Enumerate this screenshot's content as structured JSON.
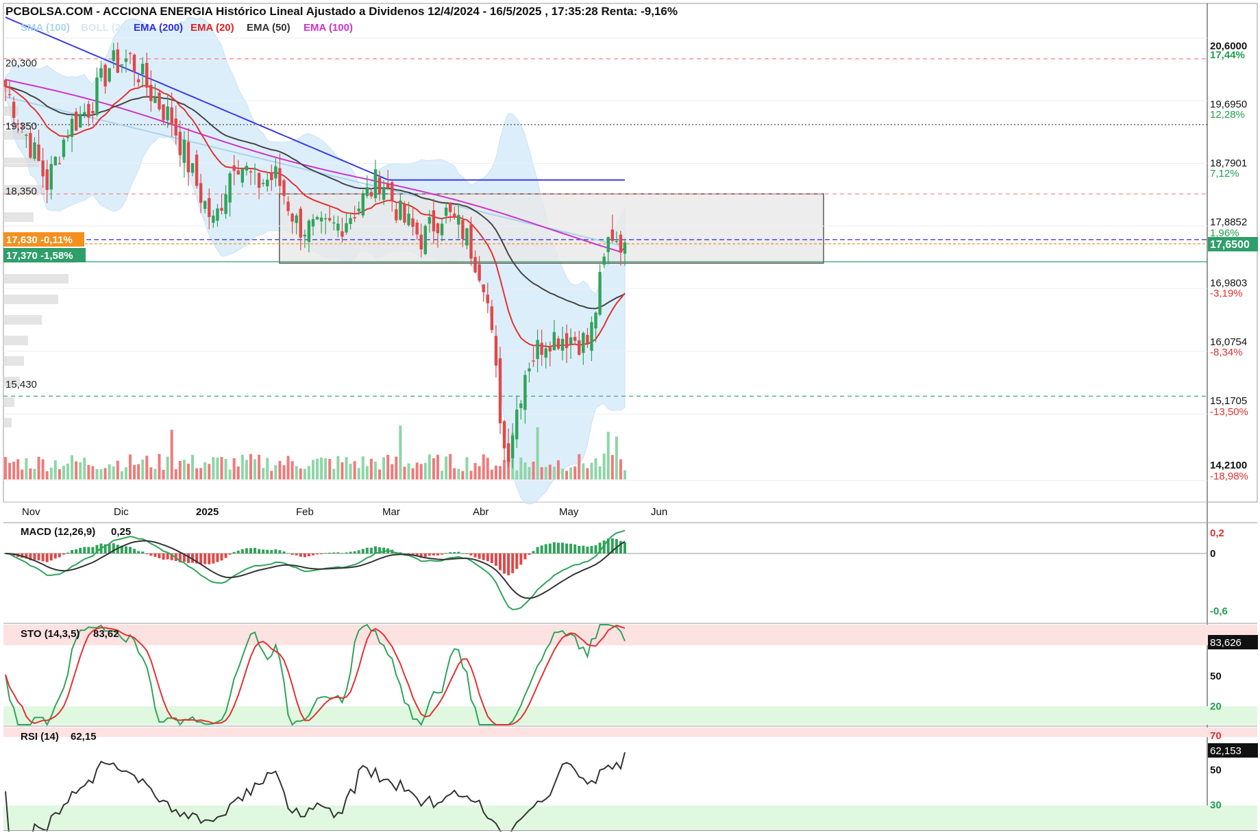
{
  "title": "PCBOLSA.COM - ACCIONA ENERGIA Histórico Lineal Ajustado a Dividenos 12/4/2024 - 16/5/2025 , 17:35:28 Renta: -9,16%",
  "legend": [
    {
      "label": "SMA (100)",
      "color": "#a9d3ee"
    },
    {
      "label": "BOLL (20)",
      "color": "#cfe6f7"
    },
    {
      "label": "EMA (200)",
      "color": "#2e2ee0"
    },
    {
      "label": "EMA (20)",
      "color": "#e02020"
    },
    {
      "label": "EMA (50)",
      "color": "#333333"
    },
    {
      "label": "EMA (100)",
      "color": "#cc33cc"
    }
  ],
  "colors": {
    "up": "#2fa35a",
    "down": "#e04848",
    "vol_up": "#8dd6a6",
    "vol_down": "#f07a7a",
    "ema200": "#3b3be6",
    "ema20": "#e33030",
    "ema50": "#444444",
    "ema100": "#cc33cc",
    "sma100": "#a9d3ee",
    "boll": "#d7ebfa"
  },
  "left_levels": [
    "20,300",
    "19,350",
    "18,350",
    "15,430"
  ],
  "price_tags": [
    {
      "text": "17,630 -0,11%",
      "color": "#f5901e"
    },
    {
      "text": "17,370 -1,58%",
      "color": "#2e9e6a"
    }
  ],
  "right_axis": [
    {
      "price": "20,6000",
      "pct": "17,44%",
      "pct_color": "#1f9f4f"
    },
    {
      "price": "19,6950",
      "pct": "12,28%",
      "pct_color": "#1f9f4f"
    },
    {
      "price": "18,7901",
      "pct": "7,12%",
      "pct_color": "#1f9f4f"
    },
    {
      "price": "17,8852",
      "pct": "1,96%",
      "pct_color": "#1f9f4f"
    },
    {
      "price": "16,9803",
      "pct": "-3,19%",
      "pct_color": "#e03030"
    },
    {
      "price": "16,0754",
      "pct": "-8,34%",
      "pct_color": "#e03030"
    },
    {
      "price": "15,1705",
      "pct": "-13,50%",
      "pct_color": "#e03030"
    },
    {
      "price": "14,2100",
      "pct": "-18,98%",
      "pct_color": "#e03030"
    }
  ],
  "current_price": "17,6500",
  "x_months": [
    "Nov",
    "Dic",
    "2025",
    "Feb",
    "Mar",
    "Abr",
    "May",
    "Jun"
  ],
  "macd": {
    "label": "MACD (12,26,9)",
    "value": "0,25",
    "axis": [
      {
        "v": "0,2",
        "color": "#e03030"
      },
      {
        "v": "0",
        "color": "#111111"
      },
      {
        "v": "-0,6",
        "color": "#1f9f4f"
      }
    ]
  },
  "sto": {
    "label": "STO (14,3,5)",
    "value": "83,62",
    "current": "83,626",
    "axis": [
      {
        "v": "50",
        "color": "#111111"
      },
      {
        "v": "20",
        "color": "#1f9f4f"
      }
    ]
  },
  "rsi": {
    "label": "RSI (14)",
    "value": "62,15",
    "current": "62,153",
    "axis": [
      {
        "v": "70",
        "color": "#e03030"
      },
      {
        "v": "50",
        "color": "#111111"
      },
      {
        "v": "30",
        "color": "#1f9f4f"
      }
    ]
  },
  "chart_data": {
    "type": "candlestick",
    "title": "PCBOLSA.COM - ACCIONA ENERGIA Histórico Lineal Ajustado a Dividenos 12/4/2024 - 16/5/2025 , 17:35:28 Renta: -9,16%",
    "ylim": [
      13.9,
      21.1
    ],
    "y_ticks": [
      20.6,
      19.695,
      18.7901,
      17.8852,
      16.9803,
      16.0754,
      15.1705,
      14.21
    ],
    "last_close": 17.65,
    "horizontal_levels": [
      20.3,
      19.35,
      18.35,
      17.63,
      17.37,
      15.43
    ],
    "rectangle_zone": {
      "from": "2025-01-20",
      "to": "2025-06-14",
      "low": 17.35,
      "high": 18.35
    },
    "close_path": [
      {
        "date": "2024-10-20",
        "close": 19.9
      },
      {
        "date": "2024-10-27",
        "close": 19.2
      },
      {
        "date": "2024-11-03",
        "close": 18.5
      },
      {
        "date": "2024-11-10",
        "close": 19.3
      },
      {
        "date": "2024-11-17",
        "close": 19.6
      },
      {
        "date": "2024-11-24",
        "close": 20.2
      },
      {
        "date": "2024-12-01",
        "close": 20.3
      },
      {
        "date": "2024-12-08",
        "close": 19.8
      },
      {
        "date": "2024-12-15",
        "close": 19.4
      },
      {
        "date": "2024-12-22",
        "close": 18.6
      },
      {
        "date": "2024-12-29",
        "close": 17.9
      },
      {
        "date": "2025-01-05",
        "close": 18.9
      },
      {
        "date": "2025-01-12",
        "close": 18.5
      },
      {
        "date": "2025-01-19",
        "close": 18.6
      },
      {
        "date": "2025-01-26",
        "close": 17.9
      },
      {
        "date": "2025-02-02",
        "close": 17.8
      },
      {
        "date": "2025-02-09",
        "close": 17.9
      },
      {
        "date": "2025-02-16",
        "close": 18.2
      },
      {
        "date": "2025-02-23",
        "close": 18.6
      },
      {
        "date": "2025-03-02",
        "close": 18.0
      },
      {
        "date": "2025-03-09",
        "close": 17.7
      },
      {
        "date": "2025-03-16",
        "close": 18.1
      },
      {
        "date": "2025-03-23",
        "close": 17.8
      },
      {
        "date": "2025-03-30",
        "close": 17.1
      },
      {
        "date": "2025-04-06",
        "close": 14.5
      },
      {
        "date": "2025-04-13",
        "close": 15.9
      },
      {
        "date": "2025-04-20",
        "close": 16.3
      },
      {
        "date": "2025-04-27",
        "close": 16.3
      },
      {
        "date": "2025-05-04",
        "close": 16.2
      },
      {
        "date": "2025-05-11",
        "close": 17.8
      },
      {
        "date": "2025-05-16",
        "close": 17.65
      }
    ],
    "indicators": {
      "macd_last": 0.25,
      "stochastic_last": 83.626,
      "rsi_last": 62.153
    },
    "x_tick_labels": [
      "Nov",
      "Dic",
      "2025",
      "Feb",
      "Mar",
      "Abr",
      "May",
      "Jun"
    ]
  }
}
